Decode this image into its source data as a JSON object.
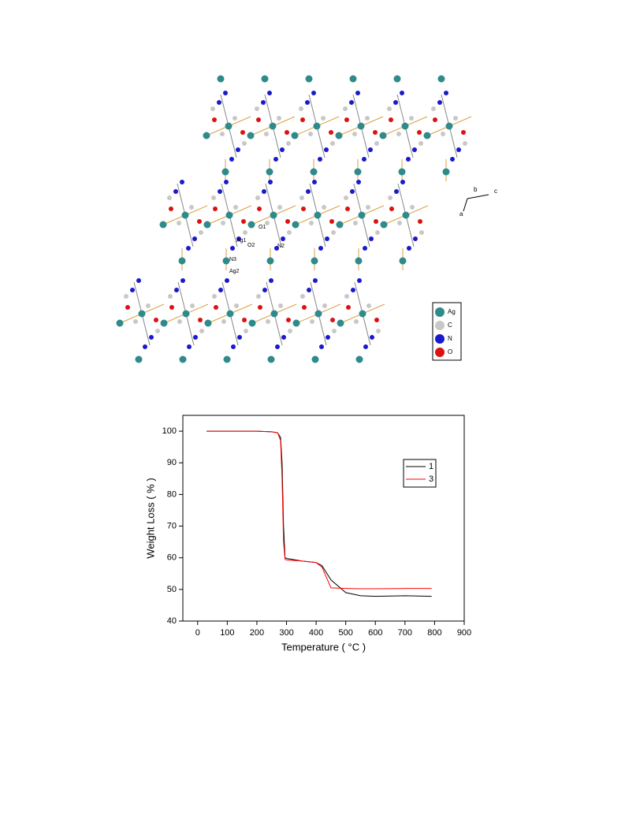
{
  "structure": {
    "atom_labels": [
      "Ag1",
      "O1",
      "O2",
      "N2",
      "N3",
      "Ag2"
    ],
    "legend": [
      "Ag",
      "C",
      "N",
      "O"
    ],
    "axes": [
      "b",
      "c",
      "a"
    ]
  },
  "chart_data": {
    "type": "line",
    "xlabel": "Temperature ( °C )",
    "ylabel": "Weight Loss ( % )",
    "x": [
      30,
      100,
      200,
      250,
      270,
      280,
      285,
      290,
      295,
      300,
      350,
      400,
      420,
      450,
      500,
      550,
      600,
      700,
      790
    ],
    "series": [
      {
        "name": "1",
        "color": "#000000",
        "values": [
          100,
          100,
          100,
          99.8,
          99.5,
          98,
          90,
          70,
          60,
          59.8,
          59,
          58.5,
          57.5,
          53,
          49,
          48,
          47.8,
          48,
          47.8
        ]
      },
      {
        "name": "3",
        "color": "#ff0000",
        "values": [
          100,
          100,
          100,
          99.8,
          99.5,
          97,
          85,
          65,
          59.5,
          59.3,
          59,
          58.5,
          57,
          50.5,
          50.3,
          50.2,
          50.2,
          50.3,
          50.3
        ]
      }
    ],
    "xlim": [
      -50,
      900
    ],
    "ylim": [
      40,
      105
    ],
    "xticks": [
      0,
      100,
      200,
      300,
      400,
      500,
      600,
      700,
      800,
      900
    ],
    "yticks": [
      40,
      50,
      60,
      70,
      80,
      90,
      100
    ],
    "legend": "upper right",
    "grid": false
  }
}
